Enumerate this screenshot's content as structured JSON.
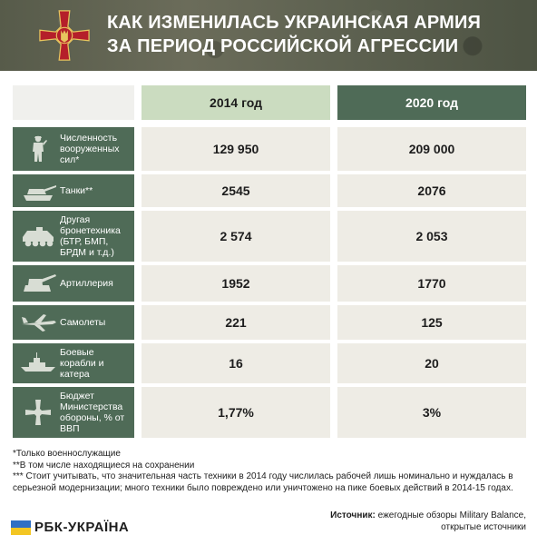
{
  "header": {
    "title_line1": "КАК ИЗМЕНИЛАСЬ УКРАИНСКАЯ АРМИЯ",
    "title_line2": "ЗА ПЕРИОД РОССИЙСКОЙ АГРЕССИИ",
    "emblem_icon": "armed-forces-cross-emblem-icon"
  },
  "table": {
    "columns": [
      "2014 год",
      "2020 год"
    ],
    "rows": [
      {
        "label": "Численность вооруженных сил*",
        "icon": "soldier-icon",
        "v2014": "129 950",
        "v2020": "209 000"
      },
      {
        "label": "Танки**",
        "icon": "tank-icon",
        "v2014": "2545",
        "v2020": "2076"
      },
      {
        "label": "Другая бронетехника (БТР, БМП, БРДМ и т.д.)",
        "icon": "armored-vehicle-icon",
        "v2014": "2 574",
        "v2020": "2 053"
      },
      {
        "label": "Артиллерия",
        "icon": "artillery-icon",
        "v2014": "1952",
        "v2020": "1770"
      },
      {
        "label": "Самолеты",
        "icon": "jet-icon",
        "v2014": "221",
        "v2020": "125"
      },
      {
        "label": "Боевые корабли и катера",
        "icon": "warship-icon",
        "v2014": "16",
        "v2020": "20"
      },
      {
        "label": "Бюджет Министерства обороны, % от ВВП",
        "icon": "cross-icon",
        "v2014": "1,77%",
        "v2020": "3%"
      }
    ]
  },
  "notes": {
    "n1": "*Только военнослужащие",
    "n2": "**В том числе находящиеся на сохранении",
    "n3": "*** Стоит учитывать, что значительная часть техники в 2014 году числилась рабочей лишь номинально и нуждалась в серьезной модернизации; много техники было повреждено или уничтожено на пике боевых действий в 2014-15 годах."
  },
  "brand": {
    "name": "РБК-УКРАЇНА"
  },
  "source": {
    "label": "Источник:",
    "text_line1": "ежегодные обзоры Military Balance,",
    "text_line2": "открытые источники"
  },
  "colors": {
    "header_bg": "#5d6150",
    "green_dark": "#4f6b57",
    "green_light": "#cbdcc0",
    "cell_bg": "#eeece5",
    "emblem_red": "#b51f2a",
    "emblem_gold": "#d9b24a"
  }
}
